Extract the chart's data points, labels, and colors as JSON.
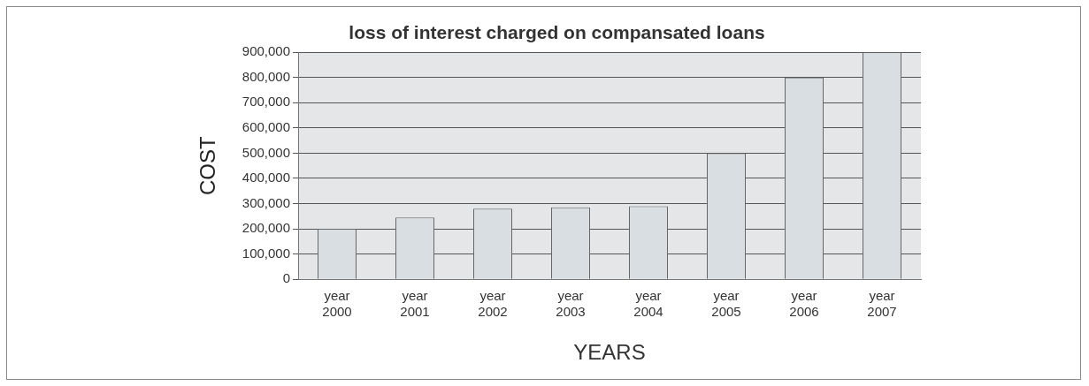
{
  "chart_data": {
    "type": "bar",
    "title": "loss of interest charged on compansated loans",
    "xlabel": "YEARS",
    "ylabel": "COST",
    "categories": [
      "year 2000",
      "year 2001",
      "year 2002",
      "year 2003",
      "year 2004",
      "year 2005",
      "year 2006",
      "year 2007"
    ],
    "values": [
      200000,
      245000,
      280000,
      285000,
      290000,
      500000,
      800000,
      900000
    ],
    "color": "#d9dee3",
    "ylim": [
      0,
      900000
    ],
    "yticks": [
      0,
      {
        "value": 100000,
        "label": "100,000"
      },
      {
        "value": 200000,
        "label": "200,000"
      },
      {
        "value": 300000,
        "label": "300,000"
      },
      {
        "value": 400000,
        "label": "400,000"
      },
      {
        "value": 500000,
        "label": "500,000"
      },
      {
        "value": 600000,
        "label": "600,000"
      },
      {
        "value": 700000,
        "label": "700,000"
      },
      {
        "value": 800000,
        "label": "800,000"
      },
      {
        "value": 900000,
        "label": "900,000"
      }
    ],
    "grid": "y",
    "legend": false
  }
}
